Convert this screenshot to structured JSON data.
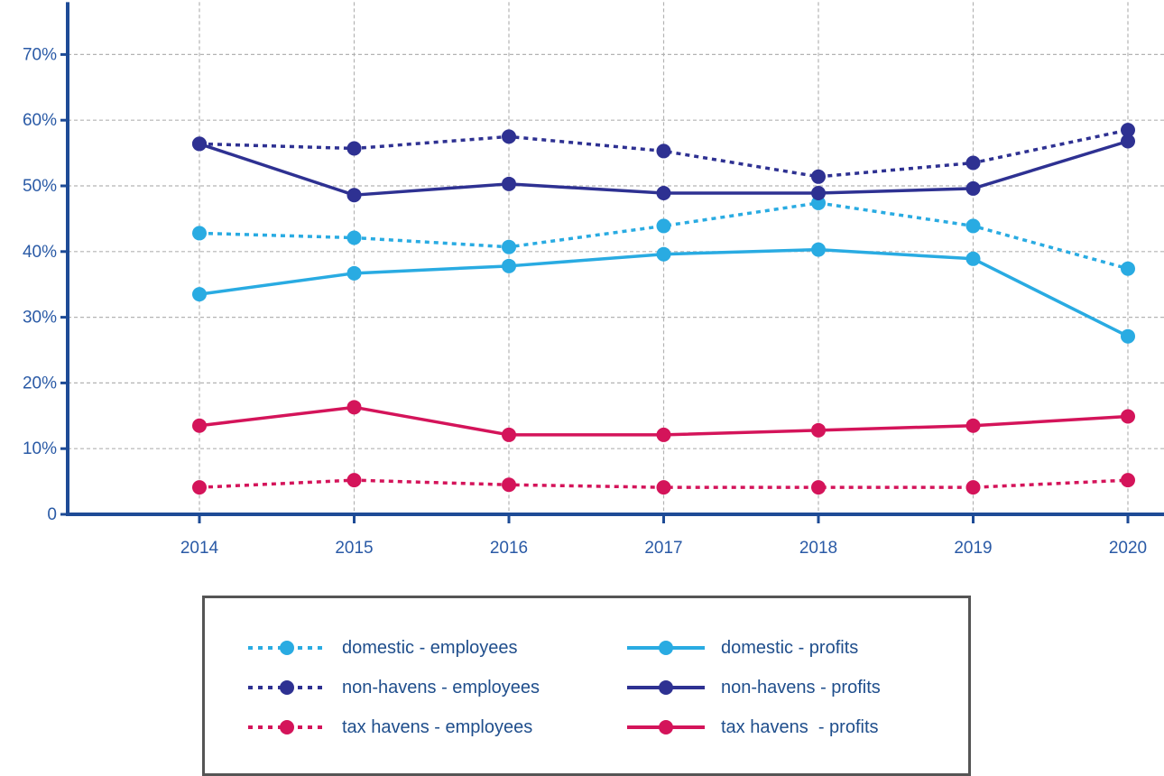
{
  "chart_data": {
    "type": "line",
    "title": "",
    "xlabel": "",
    "ylabel": "",
    "x": [
      2014,
      2015,
      2016,
      2017,
      2018,
      2019,
      2020
    ],
    "x_tick_labels": [
      "2014",
      "2015",
      "2016",
      "2017",
      "2018",
      "2019",
      "2020"
    ],
    "ylim": [
      0,
      70
    ],
    "y_ticks": [
      0,
      10,
      20,
      30,
      40,
      50,
      60,
      70
    ],
    "y_tick_labels": [
      "0",
      "10%",
      "20%",
      "30%",
      "40%",
      "50%",
      "60%",
      "70%"
    ],
    "grid": true,
    "legend_position": "bottom",
    "series": [
      {
        "name": "domestic - employees",
        "color": "#29abe2",
        "dashed": true,
        "values": [
          42.8,
          42.1,
          40.7,
          43.9,
          47.4,
          43.9,
          37.4
        ]
      },
      {
        "name": "domestic - profits",
        "color": "#29abe2",
        "dashed": false,
        "values": [
          33.5,
          36.7,
          37.8,
          39.6,
          40.3,
          38.9,
          27.1
        ]
      },
      {
        "name": "non-havens - employees",
        "color": "#2e3192",
        "dashed": true,
        "values": [
          56.4,
          55.7,
          57.5,
          55.3,
          51.4,
          53.5,
          58.5
        ]
      },
      {
        "name": "non-havens - profits",
        "color": "#2e3192",
        "dashed": false,
        "values": [
          56.4,
          48.6,
          50.3,
          48.9,
          48.9,
          49.6,
          56.8
        ]
      },
      {
        "name": "tax havens - employees",
        "color": "#d4145a",
        "dashed": true,
        "values": [
          4.1,
          5.2,
          4.5,
          4.1,
          4.1,
          4.1,
          5.2
        ]
      },
      {
        "name": "tax havens  - profits",
        "color": "#d4145a",
        "dashed": false,
        "values": [
          13.5,
          16.3,
          12.1,
          12.1,
          12.8,
          13.5,
          14.9
        ]
      }
    ]
  },
  "colors": {
    "axis": "#1e4b96",
    "grid": "#b3b3b3",
    "tick_text": "#2a5aa6",
    "legend_text": "#1f4e8c",
    "legend_border": "#555555"
  }
}
